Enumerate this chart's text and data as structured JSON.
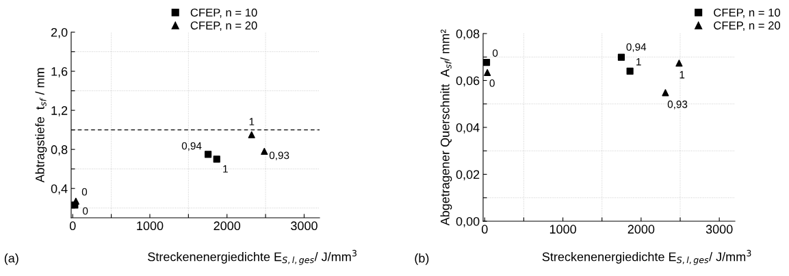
{
  "chart_data": [
    {
      "type": "scatter",
      "xlabel": "Streckenenergiedichte E$_{S,l,ges}$/ J/mm$^{3}$",
      "ylabel": "Abtragstiefe  t$_{sf}$ / mm",
      "xlim": [
        -20,
        3200
      ],
      "xticks": [
        0,
        {
          "value": 500,
          "label": null
        },
        1000,
        {
          "value": 1500,
          "label": null
        },
        2000,
        {
          "value": 2500,
          "label": null
        },
        3000
      ],
      "ylim": [
        0.1,
        2.0
      ],
      "yticks": [
        {
          "value": 0.2,
          "label": null
        },
        {
          "value": 0.4,
          "label": "0,4"
        },
        {
          "value": 0.6,
          "label": null
        },
        {
          "value": 0.8,
          "label": "0,8"
        },
        {
          "value": 1.0,
          "label": null
        },
        {
          "value": 1.2,
          "label": "1,2"
        },
        {
          "value": 1.4,
          "label": null
        },
        {
          "value": 1.6,
          "label": "1,6"
        },
        {
          "value": 1.8,
          "label": null
        },
        {
          "value": 2.0,
          "label": "2,0"
        }
      ],
      "grid": true,
      "legend": "top right",
      "series": [
        {
          "name": "CFEP, n = 10",
          "color": "#000000",
          "marker": "square",
          "x": [
            27,
            1755,
            1867
          ],
          "values": [
            0.23,
            0.75,
            0.7
          ]
        },
        {
          "name": "CFEP, n = 20",
          "color": "#000000",
          "marker": "triangle",
          "x": [
            41,
            2319,
            2484
          ],
          "values": [
            0.27,
            0.95,
            0.78
          ]
        }
      ],
      "ref_lines": [
        {
          "axis": "y",
          "value": 1.0,
          "color": "#000000",
          "line_style": "dashed"
        }
      ],
      "annotations": [
        "(a)",
        {
          "text": "0",
          "x": 27,
          "y": 0.23
        },
        {
          "text": "0,94",
          "x": 1755,
          "y": 0.75
        },
        {
          "text": "1",
          "x": 1867,
          "y": 0.7
        },
        {
          "text": "0",
          "x": 41,
          "y": 0.27
        },
        {
          "text": "1",
          "x": 2319,
          "y": 0.95
        },
        {
          "text": "0,93",
          "x": 2484,
          "y": 0.78
        }
      ]
    },
    {
      "type": "scatter",
      "xlabel": "Streckenenergiedichte E$_{S,l,ges}$/ J/mm$^{3}$",
      "ylabel": "Abgetragener Querschnitt  A$_{sf}$/ mm²",
      "xlim": [
        -20,
        3200
      ],
      "xticks": [
        0,
        {
          "value": 500,
          "label": null
        },
        1000,
        {
          "value": 1500,
          "label": null
        },
        2000,
        {
          "value": 2500,
          "label": null
        },
        3000
      ],
      "ylim": [
        0.0,
        0.08
      ],
      "yticks": [
        {
          "value": 0.0,
          "label": "0,00"
        },
        {
          "value": 0.01,
          "label": null
        },
        {
          "value": 0.02,
          "label": "0,02"
        },
        {
          "value": 0.03,
          "label": null
        },
        {
          "value": 0.04,
          "label": "0,04"
        },
        {
          "value": 0.05,
          "label": null
        },
        {
          "value": 0.06,
          "label": "0,06"
        },
        {
          "value": 0.07,
          "label": null
        },
        {
          "value": 0.08,
          "label": "0,08"
        }
      ],
      "grid": true,
      "legend": "top right",
      "series": [
        {
          "name": "CFEP, n = 10",
          "color": "#000000",
          "marker": "square",
          "x": [
            24,
            1747,
            1858
          ],
          "values": [
            0.0677,
            0.0699,
            0.064
          ]
        },
        {
          "name": "CFEP, n = 20",
          "color": "#000000",
          "marker": "triangle",
          "x": [
            34,
            2311,
            2486
          ],
          "values": [
            0.0634,
            0.0548,
            0.0674
          ]
        }
      ],
      "annotations": [
        "(b)",
        {
          "text": "0",
          "x": 24,
          "y": 0.0677
        },
        {
          "text": "0,94",
          "x": 1747,
          "y": 0.0699
        },
        {
          "text": "1",
          "x": 1858,
          "y": 0.064
        },
        {
          "text": "0",
          "x": 34,
          "y": 0.0634
        },
        {
          "text": "0,93",
          "x": 2311,
          "y": 0.0548
        },
        {
          "text": "1",
          "x": 2486,
          "y": 0.0674
        }
      ]
    }
  ]
}
